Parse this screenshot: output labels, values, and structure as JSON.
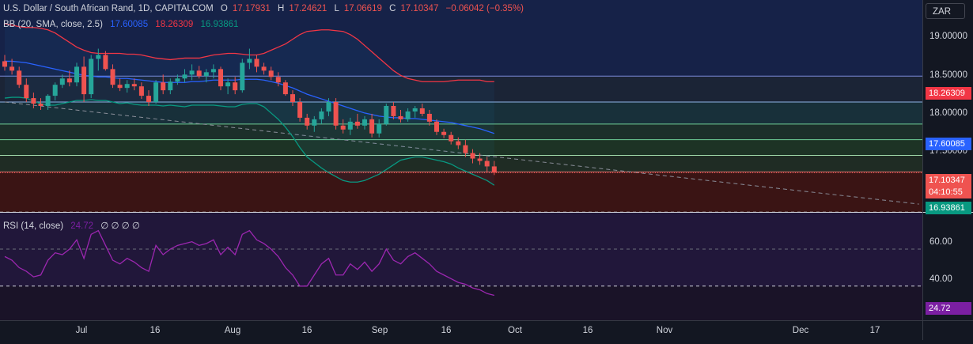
{
  "header": {
    "symbol": "U.S. Dollar / South African Rand, 1D, CAPITALCOM",
    "open_label": "O",
    "open": "17.17931",
    "high_label": "H",
    "high": "17.24621",
    "low_label": "L",
    "low": "17.06619",
    "close_label": "C",
    "close": "17.10347",
    "change": "−0.06042 (−0.35%)"
  },
  "bb_legend": {
    "name": "BB (20, SMA, close, 2.5)",
    "basis": "17.60085",
    "upper": "18.26309",
    "lower": "16.93861"
  },
  "rsi_legend": {
    "name": "RSI (14, close)",
    "value": "24.72",
    "placeholders": "∅ ∅ ∅ ∅"
  },
  "currency": "ZAR",
  "price_axis": [
    "19.00000",
    "18.50000",
    "18.00000",
    "17.50000"
  ],
  "rsi_axis": [
    "60.00",
    "40.00"
  ],
  "badges": {
    "upper": "18.26309",
    "basis": "17.60085",
    "last": "17.10347",
    "countdown": "04:10:55",
    "lower": "16.93861",
    "rsi": "24.72"
  },
  "time_axis": [
    "Jul",
    "16",
    "Aug",
    "16",
    "Sep",
    "16",
    "Oct",
    "16",
    "Nov",
    "Dec",
    "17"
  ],
  "colors": {
    "up": "#26a69a",
    "down": "#ef5350",
    "bb_upper": "#f23645",
    "bb_basis": "#2962ff",
    "bb_lower": "#089981",
    "rsi": "#9c27b0",
    "background": "#131722"
  },
  "chart_data": {
    "type": "candlestick",
    "ylim": [
      16.6,
      19.3
    ],
    "candles": [
      {
        "o": 18.52,
        "h": 18.6,
        "l": 18.4,
        "c": 18.45
      },
      {
        "o": 18.45,
        "h": 18.55,
        "l": 18.35,
        "c": 18.4
      },
      {
        "o": 18.4,
        "h": 18.45,
        "l": 18.18,
        "c": 18.22
      },
      {
        "o": 18.22,
        "h": 18.3,
        "l": 18.0,
        "c": 18.05
      },
      {
        "o": 18.05,
        "h": 18.12,
        "l": 17.92,
        "c": 17.98
      },
      {
        "o": 17.98,
        "h": 18.05,
        "l": 17.9,
        "c": 17.95
      },
      {
        "o": 17.95,
        "h": 18.1,
        "l": 17.9,
        "c": 18.08
      },
      {
        "o": 18.08,
        "h": 18.25,
        "l": 18.02,
        "c": 18.22
      },
      {
        "o": 18.22,
        "h": 18.35,
        "l": 18.18,
        "c": 18.3
      },
      {
        "o": 18.3,
        "h": 18.4,
        "l": 18.2,
        "c": 18.25
      },
      {
        "o": 18.25,
        "h": 18.5,
        "l": 18.2,
        "c": 18.45
      },
      {
        "o": 18.45,
        "h": 18.58,
        "l": 18.0,
        "c": 18.1
      },
      {
        "o": 18.1,
        "h": 18.6,
        "l": 18.05,
        "c": 18.55
      },
      {
        "o": 18.55,
        "h": 18.68,
        "l": 18.4,
        "c": 18.6
      },
      {
        "o": 18.6,
        "h": 18.65,
        "l": 18.4,
        "c": 18.42
      },
      {
        "o": 18.42,
        "h": 18.48,
        "l": 18.18,
        "c": 18.22
      },
      {
        "o": 18.22,
        "h": 18.3,
        "l": 18.14,
        "c": 18.18
      },
      {
        "o": 18.18,
        "h": 18.28,
        "l": 18.12,
        "c": 18.23
      },
      {
        "o": 18.23,
        "h": 18.3,
        "l": 18.15,
        "c": 18.2
      },
      {
        "o": 18.2,
        "h": 18.25,
        "l": 18.04,
        "c": 18.08
      },
      {
        "o": 18.08,
        "h": 18.15,
        "l": 17.95,
        "c": 18.0
      },
      {
        "o": 18.0,
        "h": 18.28,
        "l": 17.98,
        "c": 18.25
      },
      {
        "o": 18.25,
        "h": 18.35,
        "l": 18.1,
        "c": 18.15
      },
      {
        "o": 18.15,
        "h": 18.3,
        "l": 18.1,
        "c": 18.26
      },
      {
        "o": 18.26,
        "h": 18.35,
        "l": 18.22,
        "c": 18.3
      },
      {
        "o": 18.3,
        "h": 18.42,
        "l": 18.25,
        "c": 18.35
      },
      {
        "o": 18.35,
        "h": 18.48,
        "l": 18.28,
        "c": 18.4
      },
      {
        "o": 18.4,
        "h": 18.46,
        "l": 18.3,
        "c": 18.33
      },
      {
        "o": 18.33,
        "h": 18.42,
        "l": 18.25,
        "c": 18.38
      },
      {
        "o": 18.38,
        "h": 18.48,
        "l": 18.3,
        "c": 18.42
      },
      {
        "o": 18.42,
        "h": 18.45,
        "l": 18.15,
        "c": 18.2
      },
      {
        "o": 18.2,
        "h": 18.3,
        "l": 18.1,
        "c": 18.25
      },
      {
        "o": 18.25,
        "h": 18.32,
        "l": 18.1,
        "c": 18.15
      },
      {
        "o": 18.15,
        "h": 18.55,
        "l": 18.12,
        "c": 18.5
      },
      {
        "o": 18.5,
        "h": 18.68,
        "l": 18.42,
        "c": 18.55
      },
      {
        "o": 18.55,
        "h": 18.6,
        "l": 18.38,
        "c": 18.45
      },
      {
        "o": 18.45,
        "h": 18.5,
        "l": 18.35,
        "c": 18.4
      },
      {
        "o": 18.4,
        "h": 18.45,
        "l": 18.28,
        "c": 18.32
      },
      {
        "o": 18.32,
        "h": 18.38,
        "l": 18.2,
        "c": 18.25
      },
      {
        "o": 18.25,
        "h": 18.28,
        "l": 18.08,
        "c": 18.1
      },
      {
        "o": 18.1,
        "h": 18.15,
        "l": 17.95,
        "c": 18.0
      },
      {
        "o": 18.0,
        "h": 18.05,
        "l": 17.75,
        "c": 17.8
      },
      {
        "o": 17.8,
        "h": 17.85,
        "l": 17.65,
        "c": 17.7
      },
      {
        "o": 17.7,
        "h": 17.82,
        "l": 17.62,
        "c": 17.78
      },
      {
        "o": 17.78,
        "h": 17.92,
        "l": 17.72,
        "c": 17.88
      },
      {
        "o": 17.88,
        "h": 18.05,
        "l": 17.82,
        "c": 18.0
      },
      {
        "o": 18.0,
        "h": 18.05,
        "l": 17.65,
        "c": 17.7
      },
      {
        "o": 17.7,
        "h": 17.78,
        "l": 17.6,
        "c": 17.65
      },
      {
        "o": 17.65,
        "h": 17.8,
        "l": 17.58,
        "c": 17.75
      },
      {
        "o": 17.75,
        "h": 17.85,
        "l": 17.66,
        "c": 17.7
      },
      {
        "o": 17.7,
        "h": 17.82,
        "l": 17.65,
        "c": 17.78
      },
      {
        "o": 17.78,
        "h": 17.85,
        "l": 17.55,
        "c": 17.6
      },
      {
        "o": 17.6,
        "h": 17.78,
        "l": 17.55,
        "c": 17.72
      },
      {
        "o": 17.72,
        "h": 17.98,
        "l": 17.7,
        "c": 17.95
      },
      {
        "o": 17.95,
        "h": 18.0,
        "l": 17.78,
        "c": 17.82
      },
      {
        "o": 17.82,
        "h": 17.9,
        "l": 17.74,
        "c": 17.78
      },
      {
        "o": 17.78,
        "h": 17.92,
        "l": 17.75,
        "c": 17.88
      },
      {
        "o": 17.88,
        "h": 17.95,
        "l": 17.8,
        "c": 17.92
      },
      {
        "o": 17.92,
        "h": 17.98,
        "l": 17.82,
        "c": 17.85
      },
      {
        "o": 17.85,
        "h": 17.9,
        "l": 17.7,
        "c": 17.75
      },
      {
        "o": 17.75,
        "h": 17.78,
        "l": 17.58,
        "c": 17.62
      },
      {
        "o": 17.62,
        "h": 17.66,
        "l": 17.54,
        "c": 17.58
      },
      {
        "o": 17.58,
        "h": 17.62,
        "l": 17.46,
        "c": 17.5
      },
      {
        "o": 17.5,
        "h": 17.55,
        "l": 17.4,
        "c": 17.45
      },
      {
        "o": 17.45,
        "h": 17.52,
        "l": 17.3,
        "c": 17.35
      },
      {
        "o": 17.35,
        "h": 17.4,
        "l": 17.22,
        "c": 17.28
      },
      {
        "o": 17.28,
        "h": 17.35,
        "l": 17.2,
        "c": 17.25
      },
      {
        "o": 17.25,
        "h": 17.3,
        "l": 17.1,
        "c": 17.18
      },
      {
        "o": 17.18,
        "h": 17.25,
        "l": 17.07,
        "c": 17.1
      }
    ],
    "bb_upper": [
      19.0,
      18.98,
      18.96,
      18.95,
      18.95,
      18.94,
      18.92,
      18.88,
      18.82,
      18.76,
      18.7,
      18.66,
      18.63,
      18.62,
      18.62,
      18.62,
      18.62,
      18.61,
      18.61,
      18.6,
      18.58,
      18.56,
      18.55,
      18.54,
      18.55,
      18.56,
      18.56,
      18.56,
      18.58,
      18.6,
      18.61,
      18.62,
      18.62,
      18.61,
      18.6,
      18.6,
      18.62,
      18.66,
      18.7,
      18.74,
      18.8,
      18.86,
      18.9,
      18.91,
      18.92,
      18.92,
      18.91,
      18.9,
      18.86,
      18.8,
      18.72,
      18.64,
      18.56,
      18.48,
      18.4,
      18.34,
      18.3,
      18.28,
      18.26,
      18.26,
      18.26,
      18.26,
      18.27,
      18.28,
      18.28,
      18.28,
      18.28,
      18.26,
      18.26
    ],
    "bb_basis": [
      18.52,
      18.52,
      18.51,
      18.5,
      18.48,
      18.46,
      18.44,
      18.42,
      18.4,
      18.38,
      18.36,
      18.34,
      18.33,
      18.32,
      18.32,
      18.31,
      18.3,
      18.3,
      18.29,
      18.28,
      18.27,
      18.26,
      18.25,
      18.25,
      18.25,
      18.25,
      18.26,
      18.26,
      18.27,
      18.28,
      18.28,
      18.28,
      18.28,
      18.29,
      18.29,
      18.29,
      18.28,
      18.26,
      18.24,
      18.21,
      18.18,
      18.14,
      18.1,
      18.07,
      18.04,
      18.01,
      17.98,
      17.95,
      17.92,
      17.89,
      17.86,
      17.84,
      17.82,
      17.81,
      17.8,
      17.8,
      17.79,
      17.79,
      17.78,
      17.77,
      17.76,
      17.75,
      17.74,
      17.72,
      17.7,
      17.68,
      17.66,
      17.63,
      17.6
    ],
    "bb_lower": [
      18.05,
      18.06,
      18.06,
      18.05,
      18.01,
      17.98,
      17.96,
      17.96,
      17.98,
      18.0,
      18.02,
      18.02,
      18.03,
      18.02,
      18.02,
      18.0,
      17.98,
      17.99,
      17.97,
      17.96,
      17.96,
      17.96,
      17.95,
      17.96,
      17.95,
      17.94,
      17.96,
      17.96,
      17.96,
      17.96,
      17.95,
      17.94,
      17.94,
      17.97,
      17.98,
      17.98,
      17.94,
      17.86,
      17.78,
      17.68,
      17.56,
      17.42,
      17.3,
      17.23,
      17.16,
      17.1,
      17.05,
      17.0,
      16.98,
      16.98,
      17.0,
      17.04,
      17.08,
      17.14,
      17.2,
      17.26,
      17.28,
      17.3,
      17.3,
      17.28,
      17.26,
      17.24,
      17.21,
      17.16,
      17.12,
      17.08,
      17.04,
      17.0,
      16.94
    ],
    "rsi": [
      46,
      44,
      40,
      38,
      35,
      36,
      44,
      48,
      47,
      50,
      55,
      45,
      58,
      60,
      52,
      44,
      42,
      45,
      43,
      40,
      38,
      52,
      47,
      50,
      52,
      53,
      54,
      52,
      53,
      55,
      47,
      51,
      47,
      58,
      60,
      55,
      53,
      50,
      46,
      40,
      36,
      30,
      30,
      36,
      42,
      45,
      36,
      36,
      42,
      39,
      43,
      38,
      42,
      50,
      44,
      42,
      46,
      48,
      45,
      42,
      38,
      36,
      34,
      32,
      31,
      29,
      28,
      26,
      25
    ],
    "levels": [
      19.31,
      18.33,
      18.0,
      17.72,
      17.52,
      17.32,
      17.11
    ],
    "rsi_levels": [
      70,
      50,
      30
    ],
    "trend_line": {
      "from": {
        "index": 0,
        "price": 18.0
      },
      "to": {
        "index": 127,
        "price": 16.7
      }
    }
  }
}
